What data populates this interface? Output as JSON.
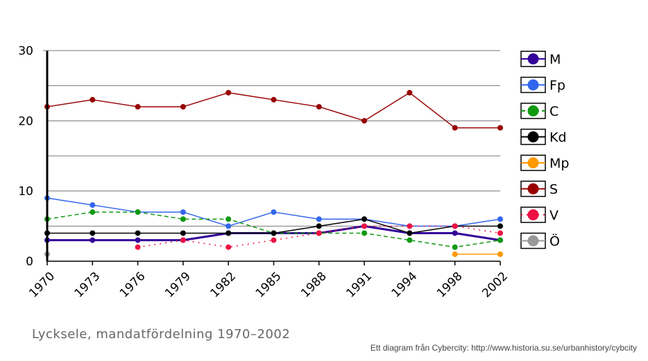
{
  "caption": "Lycksele, mandatfördelning 1970–2002",
  "credit": "Ett diagram från Cybercity: http://www.historia.su.se/urbanhistory/cybcity",
  "chart_data": {
    "type": "line",
    "title": "",
    "xlabel": "",
    "ylabel": "",
    "x": [
      "1970",
      "1973",
      "1976",
      "1979",
      "1982",
      "1985",
      "1988",
      "1991",
      "1994",
      "1998",
      "2002"
    ],
    "ylim": [
      0,
      30
    ],
    "yticks": [
      0,
      10,
      20,
      30
    ],
    "grid": true,
    "legend_position": "right",
    "series": [
      {
        "name": "M",
        "color": "#330099",
        "dash": "solid",
        "width": 3,
        "values": [
          3,
          3,
          3,
          3,
          4,
          4,
          4,
          5,
          4,
          4,
          3
        ]
      },
      {
        "name": "Fp",
        "color": "#3366ee",
        "dash": "solid",
        "width": 1.5,
        "values": [
          9,
          8,
          7,
          7,
          5,
          7,
          6,
          6,
          5,
          5,
          6
        ]
      },
      {
        "name": "C",
        "color": "#119911",
        "dash": "dashed",
        "width": 1.5,
        "values": [
          6,
          7,
          7,
          6,
          6,
          4,
          4,
          4,
          3,
          2,
          3
        ]
      },
      {
        "name": "Kd",
        "color": "#000000",
        "dash": "solid",
        "width": 1.5,
        "values": [
          4,
          4,
          4,
          4,
          4,
          4,
          5,
          6,
          4,
          5,
          5
        ]
      },
      {
        "name": "Mp",
        "color": "#ff9900",
        "dash": "solid",
        "width": 1.5,
        "values": [
          null,
          null,
          null,
          null,
          null,
          null,
          null,
          null,
          null,
          1,
          1
        ]
      },
      {
        "name": "S",
        "color": "#990000",
        "dash": "solid",
        "width": 1.5,
        "values": [
          22,
          23,
          22,
          22,
          24,
          23,
          22,
          20,
          24,
          19,
          19
        ]
      },
      {
        "name": "V",
        "color": "#ee1144",
        "dash": "dotted",
        "width": 1.5,
        "values": [
          null,
          null,
          2,
          3,
          2,
          3,
          4,
          5,
          5,
          5,
          4
        ]
      },
      {
        "name": "Ö",
        "color": "#999999",
        "dash": "solid",
        "width": 1.5,
        "values": [
          1,
          null,
          null,
          null,
          null,
          null,
          null,
          null,
          null,
          null,
          null
        ]
      }
    ]
  }
}
